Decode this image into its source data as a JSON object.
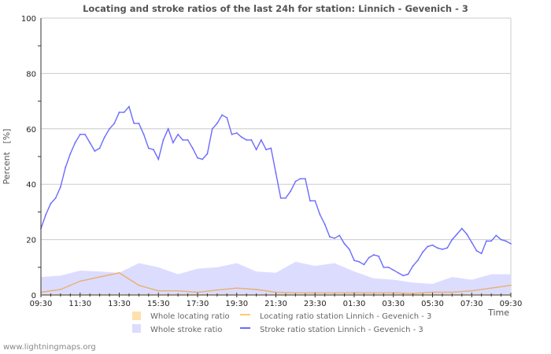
{
  "footer": "www.lightningmaps.org",
  "chart_data": {
    "type": "line",
    "title": "Locating and stroke ratios of the last 24h for station: Linnich - Gevenich - 3",
    "xlabel": "Time",
    "ylabel": "Percent   [%]",
    "ylim": [
      0,
      100
    ],
    "yticks": [
      "0",
      "20",
      "40",
      "60",
      "80",
      "100"
    ],
    "xticks": [
      "09:30",
      "11:30",
      "13:30",
      "15:30",
      "17:30",
      "19:30",
      "21:30",
      "23:30",
      "01:30",
      "03:30",
      "05:30",
      "07:30",
      "09:30"
    ],
    "x_range_hours": [
      0,
      24
    ],
    "grid": true,
    "legend_position": "bottom",
    "colors": {
      "whole_locating": "#ffe0b0",
      "whole_stroke": "#dcdcff",
      "station_locating": "#e8b070",
      "station_stroke": "#6a6aff",
      "grid": "#cccccc"
    },
    "series": [
      {
        "name": "Whole locating ratio",
        "kind": "area",
        "step_hours": 1,
        "values": [
          0.3,
          0.3,
          0.3,
          0.3,
          0.3,
          0.3,
          0.3,
          0.3,
          0.3,
          0.3,
          0.3,
          0.3,
          0.3,
          0.3,
          0.3,
          0.3,
          0.3,
          0.3,
          0.3,
          0.3,
          0.3,
          0.3,
          0.3,
          0.3,
          0.3
        ]
      },
      {
        "name": "Whole stroke ratio",
        "kind": "area",
        "step_hours": 1,
        "values": [
          6.5,
          7,
          8.8,
          8.5,
          8,
          11.5,
          10,
          7.5,
          9.5,
          10,
          11.5,
          8.5,
          8,
          12,
          10.5,
          11.5,
          8.5,
          6,
          5.5,
          4.5,
          4,
          6.5,
          5.5,
          7.5,
          7.5
        ]
      },
      {
        "name": "Locating ratio station Linnich - Gevenich - 3",
        "kind": "line",
        "step_hours": 1,
        "values": [
          1,
          2,
          5,
          6.5,
          8,
          3.5,
          1.5,
          1.5,
          1,
          1.8,
          2.5,
          2,
          1,
          0.8,
          0.8,
          0.8,
          0.8,
          0.8,
          0.8,
          0.6,
          1,
          1,
          1.5,
          2.5,
          3.5
        ]
      },
      {
        "name": "Stroke ratio station Linnich - Gevenich - 3",
        "kind": "line",
        "step_hours": 0.25,
        "values": [
          24,
          29,
          33,
          35,
          39,
          46,
          51,
          55,
          58,
          58,
          55,
          52,
          53,
          57,
          60,
          62,
          66,
          66,
          68,
          62,
          62,
          58,
          53,
          52.5,
          49,
          56,
          60,
          55,
          58,
          56,
          56,
          53,
          49.5,
          49,
          51,
          60,
          62,
          65,
          64,
          58,
          58.5,
          57,
          56,
          56,
          52.5,
          56,
          52.5,
          53,
          44,
          35,
          35,
          37.5,
          41,
          42,
          42,
          34,
          34,
          29,
          25.5,
          21,
          20.5,
          21.5,
          18.5,
          16.5,
          12.5,
          12,
          11,
          13.5,
          14.5,
          14,
          10,
          10,
          9,
          8,
          7,
          7.5,
          10.5,
          12.5,
          15.5,
          17.5,
          18,
          17,
          16.5,
          17,
          20,
          22,
          24,
          22,
          19,
          16,
          15,
          19.5,
          19.5,
          21.5,
          20,
          19.5,
          18.5
        ]
      }
    ]
  }
}
